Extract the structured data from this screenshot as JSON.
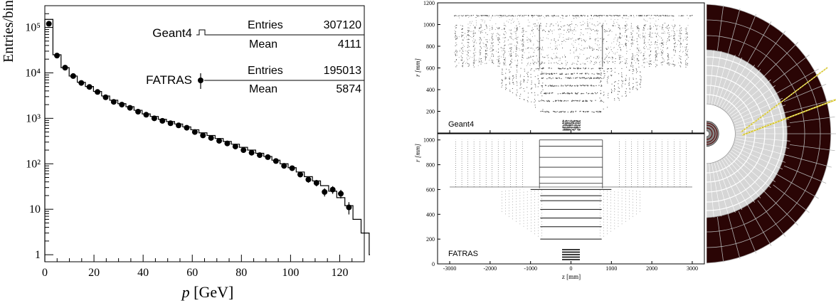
{
  "chart_data": [
    {
      "type": "histogram",
      "xlabel": "p [GeV]",
      "ylabel": "Entries/bin",
      "xlim": [
        0,
        130
      ],
      "ylim": [
        0.7,
        300000
      ],
      "yscale": "log",
      "x_ticks": [
        "0",
        "20",
        "40",
        "60",
        "80",
        "100",
        "120"
      ],
      "y_ticks": [
        "1",
        "10",
        "10²",
        "10³",
        "10⁴",
        "10⁵"
      ],
      "bin_width": 3.3,
      "series": [
        {
          "name": "Geant4",
          "style": "step",
          "values": [
            150000,
            25000,
            13000,
            8500,
            6200,
            5000,
            3900,
            3100,
            2500,
            2100,
            1800,
            1500,
            1250,
            1100,
            950,
            850,
            750,
            650,
            560,
            480,
            420,
            360,
            310,
            270,
            230,
            200,
            170,
            145,
            120,
            100,
            82,
            66,
            52,
            42,
            33,
            25,
            18,
            12,
            6,
            3,
            1
          ],
          "stats": {
            "Entries": "307120",
            "Mean": "4111"
          }
        },
        {
          "name": "FATRAS",
          "style": "points",
          "x": [
            1.65,
            4.95,
            8.25,
            11.55,
            14.85,
            18.15,
            21.45,
            24.75,
            28.05,
            31.35,
            34.65,
            37.95,
            41.25,
            44.55,
            47.85,
            51.15,
            54.45,
            57.75,
            61.05,
            64.35,
            67.65,
            70.95,
            74.25,
            77.55,
            80.85,
            84.15,
            87.45,
            90.75,
            94.05,
            97.35,
            100.65,
            103.95,
            107.25,
            110.55,
            113.85,
            117.15,
            120.45,
            123.75
          ],
          "values": [
            120000,
            24000,
            13000,
            8500,
            6000,
            4900,
            3800,
            2900,
            2300,
            2000,
            1700,
            1400,
            1200,
            1000,
            880,
            780,
            700,
            620,
            500,
            420,
            370,
            320,
            280,
            240,
            200,
            175,
            155,
            140,
            115,
            90,
            80,
            58,
            45,
            38,
            24,
            27,
            22,
            11
          ],
          "stats": {
            "Entries": "195013",
            "Mean": "5874"
          }
        }
      ],
      "stats_labels": {
        "entries": "Entries",
        "mean": "Mean"
      }
    },
    {
      "type": "scatter",
      "title": "Geant4",
      "xlabel": "z [mm]",
      "ylabel": "r [mm]",
      "xlim": [
        -3300,
        3300
      ],
      "ylim": [
        0,
        1200
      ],
      "x_ticks": [
        "-3000",
        "-2000",
        "-1000",
        "0",
        "1000",
        "2000",
        "3000"
      ],
      "y_ticks": [
        "200",
        "400",
        "600",
        "800",
        "1000",
        "1200"
      ]
    },
    {
      "type": "scatter",
      "title": "FATRAS",
      "xlabel": "z [mm]",
      "ylabel": "r [mm]",
      "xlim": [
        -3300,
        3300
      ],
      "ylim": [
        0,
        1050
      ],
      "x_ticks": [
        "-3000",
        "-2000",
        "-1000",
        "0",
        "1000",
        "2000",
        "3000"
      ],
      "y_ticks": [
        "0",
        "200",
        "400",
        "600",
        "800",
        "1000"
      ]
    }
  ],
  "colors": {
    "axis": "#000000",
    "hits": "#555555",
    "calorimeter_fill": "#2a0505",
    "calorimeter_lines": "#b0b0b0",
    "tracker_fill": "#d6d6d6",
    "track": "#d4c21a"
  }
}
